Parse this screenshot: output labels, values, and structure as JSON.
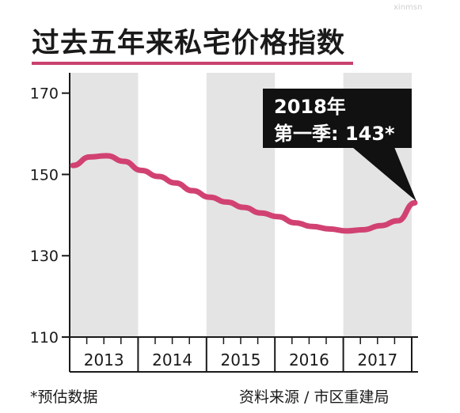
{
  "title": "过去五年来私宅价格指数",
  "watermark": "xinmsn",
  "footnote": "*预估数据",
  "source": "资料来源 / 市区重建局",
  "colors": {
    "line": "#d14272",
    "band": "#e4e4e4",
    "title_rule": "#c9416e",
    "callout_bg": "#111111"
  },
  "chart_data": {
    "type": "line",
    "title": "过去五年来私宅价格指数",
    "xlabel": "",
    "ylabel": "",
    "categories": [
      "2013",
      "2014",
      "2015",
      "2016",
      "2017"
    ],
    "ylim": [
      110,
      175
    ],
    "yticks": [
      110,
      130,
      150,
      170
    ],
    "grid": false,
    "x": [
      "2013 Q1",
      "2013 Q2",
      "2013 Q3",
      "2013 Q4",
      "2014 Q1",
      "2014 Q2",
      "2014 Q3",
      "2014 Q4",
      "2015 Q1",
      "2015 Q2",
      "2015 Q3",
      "2015 Q4",
      "2016 Q1",
      "2016 Q2",
      "2016 Q3",
      "2016 Q4",
      "2017 Q1",
      "2017 Q2",
      "2017 Q3",
      "2017 Q4",
      "2018 Q1"
    ],
    "series": [
      {
        "values": [
          152.2,
          154.3,
          154.6,
          153.2,
          151.0,
          149.5,
          147.9,
          146.0,
          144.4,
          143.2,
          141.9,
          140.5,
          139.6,
          138.1,
          137.2,
          136.6,
          136.1,
          136.4,
          137.4,
          138.6,
          143.0
        ]
      }
    ],
    "annotations": [
      {
        "target": "2018 Q1",
        "line1": "2018年",
        "line2": "第一季: 143*"
      }
    ]
  }
}
